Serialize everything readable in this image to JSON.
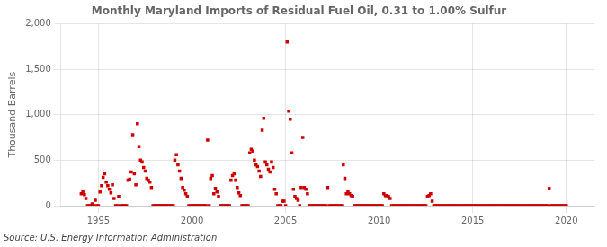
{
  "chart_data": {
    "type": "scatter",
    "title": "Monthly Maryland Imports of Residual Fuel Oil, 0.31 to 1.00% Sulfur",
    "y_label": "Thousand Barrels",
    "annotation": "Source: U.S. Energy Information Administration",
    "color": "#cc0000",
    "marker": "square",
    "grid": true,
    "xlim": [
      1993.0,
      2021.5
    ],
    "ylim": [
      0,
      2000
    ],
    "xticks": [
      1995,
      2000,
      2005,
      2010,
      2015,
      2020
    ],
    "yticks": [
      0,
      500,
      {
        "value": 1000,
        "label": "1,000"
      },
      {
        "value": 1500,
        "label": "1,500"
      },
      {
        "value": 2000,
        "label": "2,000"
      }
    ],
    "x": [
      1994.083,
      1994.167,
      1994.25,
      1994.333,
      1994.417,
      1994.5,
      1994.583,
      1994.667,
      1994.75,
      1994.833,
      1994.917,
      1995.0,
      1995.083,
      1995.167,
      1995.25,
      1995.333,
      1995.417,
      1995.5,
      1995.583,
      1995.667,
      1995.75,
      1995.833,
      1995.917,
      1996.0,
      1996.083,
      1996.167,
      1996.25,
      1996.333,
      1996.417,
      1996.5,
      1996.583,
      1996.667,
      1996.75,
      1996.833,
      1996.917,
      1997.0,
      1997.083,
      1997.167,
      1997.25,
      1997.333,
      1997.417,
      1997.5,
      1997.583,
      1997.667,
      1997.75,
      1997.833,
      1997.917,
      1998.0,
      1998.083,
      1998.167,
      1998.25,
      1998.333,
      1998.417,
      1998.5,
      1998.583,
      1998.667,
      1998.75,
      1998.833,
      1998.917,
      1999.0,
      1999.083,
      1999.167,
      1999.25,
      1999.333,
      1999.417,
      1999.5,
      1999.583,
      1999.667,
      1999.75,
      1999.833,
      1999.917,
      2000.0,
      2000.083,
      2000.167,
      2000.25,
      2000.333,
      2000.417,
      2000.5,
      2000.583,
      2000.667,
      2000.75,
      2000.833,
      2000.917,
      2001.0,
      2001.083,
      2001.167,
      2001.25,
      2001.333,
      2001.417,
      2001.5,
      2001.583,
      2001.667,
      2001.75,
      2001.833,
      2001.917,
      2002.0,
      2002.083,
      2002.167,
      2002.25,
      2002.333,
      2002.417,
      2002.5,
      2002.583,
      2002.667,
      2002.75,
      2002.833,
      2002.917,
      2003.0,
      2003.083,
      2003.167,
      2003.25,
      2003.333,
      2003.417,
      2003.5,
      2003.583,
      2003.667,
      2003.75,
      2003.833,
      2003.917,
      2004.0,
      2004.083,
      2004.167,
      2004.25,
      2004.333,
      2004.417,
      2004.5,
      2004.583,
      2004.667,
      2004.75,
      2004.833,
      2004.917,
      2005.0,
      2005.083,
      2005.167,
      2005.25,
      2005.333,
      2005.417,
      2005.5,
      2005.583,
      2005.667,
      2005.75,
      2005.833,
      2005.917,
      2006.0,
      2006.083,
      2006.167,
      2006.25,
      2006.333,
      2006.417,
      2006.5,
      2006.583,
      2006.667,
      2006.75,
      2006.833,
      2006.917,
      2007.0,
      2007.083,
      2007.167,
      2007.25,
      2007.333,
      2007.417,
      2007.5,
      2007.583,
      2007.667,
      2007.75,
      2007.833,
      2007.917,
      2008.0,
      2008.083,
      2008.167,
      2008.25,
      2008.333,
      2008.417,
      2008.5,
      2008.583,
      2008.667,
      2008.75,
      2008.833,
      2008.917,
      2009.0,
      2009.083,
      2009.167,
      2009.25,
      2009.333,
      2009.417,
      2009.5,
      2009.583,
      2009.667,
      2009.75,
      2009.833,
      2009.917,
      2010.0,
      2010.083,
      2010.167,
      2010.25,
      2010.333,
      2010.417,
      2010.5,
      2010.583,
      2010.667,
      2010.75,
      2010.833,
      2010.917,
      2011.0,
      2011.083,
      2011.167,
      2011.25,
      2011.333,
      2011.417,
      2011.5,
      2011.583,
      2011.667,
      2011.75,
      2011.833,
      2011.917,
      2012.0,
      2012.083,
      2012.167,
      2012.25,
      2012.333,
      2012.417,
      2012.5,
      2012.583,
      2012.667,
      2012.75,
      2012.833,
      2012.917,
      2013.0,
      2013.083,
      2013.167,
      2013.25,
      2013.333,
      2013.417,
      2013.5,
      2013.583,
      2013.667,
      2013.75,
      2013.833,
      2013.917,
      2014.0,
      2014.083,
      2014.167,
      2014.25,
      2014.333,
      2014.417,
      2014.5,
      2014.583,
      2014.667,
      2014.75,
      2014.833,
      2014.917,
      2015.0,
      2015.083,
      2015.167,
      2015.25,
      2015.333,
      2015.417,
      2015.5,
      2015.583,
      2015.667,
      2015.75,
      2015.833,
      2015.917,
      2016.0,
      2016.083,
      2016.167,
      2016.25,
      2016.333,
      2016.417,
      2016.5,
      2016.583,
      2016.667,
      2016.75,
      2016.833,
      2016.917,
      2017.0,
      2017.083,
      2017.167,
      2017.25,
      2017.333,
      2017.417,
      2017.5,
      2017.583,
      2017.667,
      2017.75,
      2017.833,
      2017.917,
      2018.0,
      2018.083,
      2018.167,
      2018.25,
      2018.333,
      2018.417,
      2018.5,
      2018.583,
      2018.667,
      2018.75,
      2018.833,
      2018.917,
      2019.0,
      2019.083,
      2019.167,
      2019.25,
      2019.333,
      2019.417,
      2019.5,
      2019.583,
      2019.667,
      2019.75,
      2019.833,
      2019.917,
      2020.0
    ],
    "values": [
      130,
      155,
      120,
      80,
      0,
      0,
      0,
      20,
      0,
      60,
      0,
      0,
      150,
      220,
      310,
      350,
      260,
      220,
      180,
      140,
      230,
      80,
      0,
      0,
      100,
      0,
      0,
      0,
      0,
      0,
      280,
      290,
      370,
      780,
      350,
      230,
      900,
      650,
      500,
      480,
      420,
      380,
      300,
      280,
      260,
      200,
      0,
      0,
      0,
      0,
      0,
      0,
      0,
      0,
      0,
      0,
      0,
      0,
      0,
      0,
      500,
      560,
      450,
      380,
      300,
      200,
      170,
      130,
      100,
      0,
      0,
      0,
      0,
      0,
      0,
      0,
      0,
      0,
      0,
      0,
      0,
      720,
      0,
      300,
      330,
      130,
      190,
      150,
      100,
      0,
      0,
      0,
      0,
      0,
      0,
      0,
      280,
      330,
      350,
      280,
      200,
      140,
      110,
      0,
      0,
      0,
      0,
      0,
      580,
      620,
      600,
      500,
      450,
      430,
      380,
      320,
      830,
      960,
      480,
      450,
      400,
      370,
      480,
      420,
      180,
      130,
      0,
      0,
      0,
      50,
      50,
      0,
      1800,
      1040,
      950,
      580,
      180,
      100,
      80,
      60,
      0,
      200,
      750,
      200,
      180,
      130,
      0,
      0,
      0,
      0,
      0,
      0,
      0,
      0,
      0,
      0,
      0,
      0,
      200,
      0,
      0,
      0,
      0,
      0,
      0,
      0,
      0,
      0,
      450,
      300,
      130,
      150,
      130,
      110,
      100,
      0,
      0,
      0,
      0,
      0,
      0,
      0,
      0,
      0,
      0,
      0,
      0,
      0,
      0,
      0,
      0,
      0,
      0,
      0,
      130,
      110,
      110,
      100,
      80,
      0,
      0,
      0,
      0,
      0,
      0,
      0,
      0,
      0,
      0,
      0,
      0,
      0,
      0,
      0,
      0,
      0,
      0,
      0,
      0,
      0,
      0,
      0,
      100,
      110,
      130,
      50,
      0,
      0,
      0,
      0,
      0,
      0,
      0,
      0,
      0,
      0,
      0,
      0,
      0,
      0,
      0,
      0,
      0,
      0,
      0,
      0,
      0,
      0,
      0,
      0,
      0,
      0,
      0,
      0,
      0,
      0,
      0,
      0,
      0,
      0,
      0,
      0,
      0,
      0,
      0,
      0,
      0,
      0,
      0,
      0,
      0,
      0,
      0,
      0,
      0,
      0,
      0,
      0,
      0,
      0,
      0,
      0,
      0,
      0,
      0,
      0,
      0,
      0,
      0,
      0,
      0,
      0,
      0,
      0,
      0,
      0,
      0,
      0,
      0,
      0,
      190,
      0,
      0,
      0,
      0,
      0,
      0,
      0,
      0,
      0,
      0,
      0
    ]
  }
}
